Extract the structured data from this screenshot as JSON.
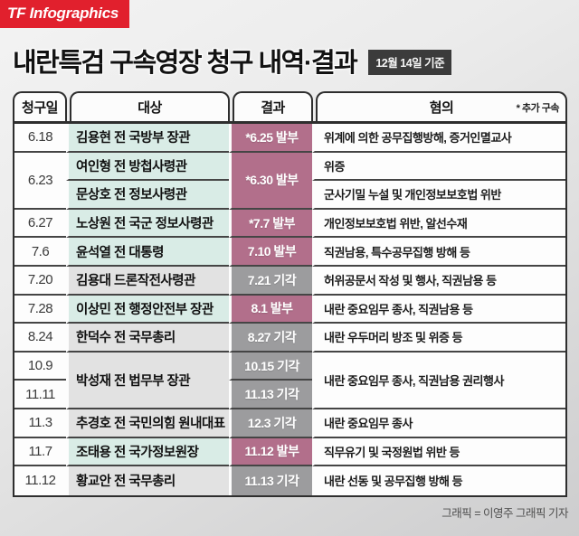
{
  "brand": {
    "logo": "TF Infographics",
    "logo_bg": "#e1202d"
  },
  "header": {
    "title": "내란특검 구속영장 청구 내역·결과",
    "badge": "12월 14일 기준"
  },
  "table": {
    "columns": [
      "청구일",
      "대상",
      "결과",
      "혐의"
    ],
    "note": "* 추가 구속",
    "status_colors": {
      "issued_result_bg": "#b26f8b",
      "denied_result_bg": "#9c9c9e",
      "issued_name_bg": "#d9ece6",
      "denied_name_bg": "#e2e2e2"
    },
    "groups": [
      {
        "rows": 1,
        "dates": [
          "6.18"
        ],
        "targets": [
          "김용현 전 국방부 장관"
        ],
        "results": [
          {
            "text": "*6.25 발부",
            "status": "issued"
          }
        ],
        "charges": [
          "위계에 의한 공무집행방해, 증거인멸교사"
        ]
      },
      {
        "rows": 2,
        "dates": [
          "6.23"
        ],
        "targets": [
          "여인형 전 방첩사령관",
          "문상호 전 정보사령관"
        ],
        "results": [
          {
            "text": "*6.30 발부",
            "status": "issued"
          }
        ],
        "charges": [
          "위증",
          "군사기밀 누설 및 개인정보보호법 위반"
        ]
      },
      {
        "rows": 1,
        "dates": [
          "6.27"
        ],
        "targets": [
          "노상원 전 국군 정보사령관"
        ],
        "results": [
          {
            "text": "*7.7 발부",
            "status": "issued"
          }
        ],
        "charges": [
          "개인정보보호법 위반, 알선수재"
        ]
      },
      {
        "rows": 1,
        "dates": [
          "7.6"
        ],
        "targets": [
          "윤석열 전 대통령"
        ],
        "results": [
          {
            "text": "7.10 발부",
            "status": "issued"
          }
        ],
        "charges": [
          "직권남용, 특수공무집행 방해 등"
        ]
      },
      {
        "rows": 1,
        "dates": [
          "7.20"
        ],
        "targets": [
          "김용대 드론작전사령관"
        ],
        "results": [
          {
            "text": "7.21 기각",
            "status": "denied"
          }
        ],
        "charges": [
          "허위공문서 작성 및 행사, 직권남용 등"
        ]
      },
      {
        "rows": 1,
        "dates": [
          "7.28"
        ],
        "targets": [
          "이상민 전 행정안전부 장관"
        ],
        "results": [
          {
            "text": "8.1 발부",
            "status": "issued"
          }
        ],
        "charges": [
          "내란 중요임무 종사, 직권남용 등"
        ]
      },
      {
        "rows": 1,
        "dates": [
          "8.24"
        ],
        "targets": [
          "한덕수 전 국무총리"
        ],
        "results": [
          {
            "text": "8.27 기각",
            "status": "denied"
          }
        ],
        "charges": [
          "내란 우두머리 방조 및 위증 등"
        ]
      },
      {
        "rows": 2,
        "dates": [
          "10.9",
          "11.11"
        ],
        "targets": [
          "박성재 전 법무부 장관"
        ],
        "results": [
          {
            "text": "10.15 기각",
            "status": "denied"
          },
          {
            "text": "11.13 기각",
            "status": "denied"
          }
        ],
        "charges": [
          "내란 중요임무 종사, 직권남용 권리행사"
        ]
      },
      {
        "rows": 1,
        "dates": [
          "11.3"
        ],
        "targets": [
          "추경호 전 국민의힘 원내대표"
        ],
        "results": [
          {
            "text": "12.3 기각",
            "status": "denied"
          }
        ],
        "charges": [
          "내란 중요임무 종사"
        ]
      },
      {
        "rows": 1,
        "dates": [
          "11.7"
        ],
        "targets": [
          "조태용 전 국가정보원장"
        ],
        "results": [
          {
            "text": "11.12 발부",
            "status": "issued"
          }
        ],
        "charges": [
          "직무유기 및 국정원법 위반 등"
        ]
      },
      {
        "rows": 1,
        "dates": [
          "11.12"
        ],
        "targets": [
          "황교안 전 국무총리"
        ],
        "results": [
          {
            "text": "11.13 기각",
            "status": "denied"
          }
        ],
        "charges": [
          "내란 선동 및 공무집행 방해 등"
        ]
      }
    ]
  },
  "footer": {
    "credit": "그래픽 = 이영주 그래픽 기자"
  }
}
